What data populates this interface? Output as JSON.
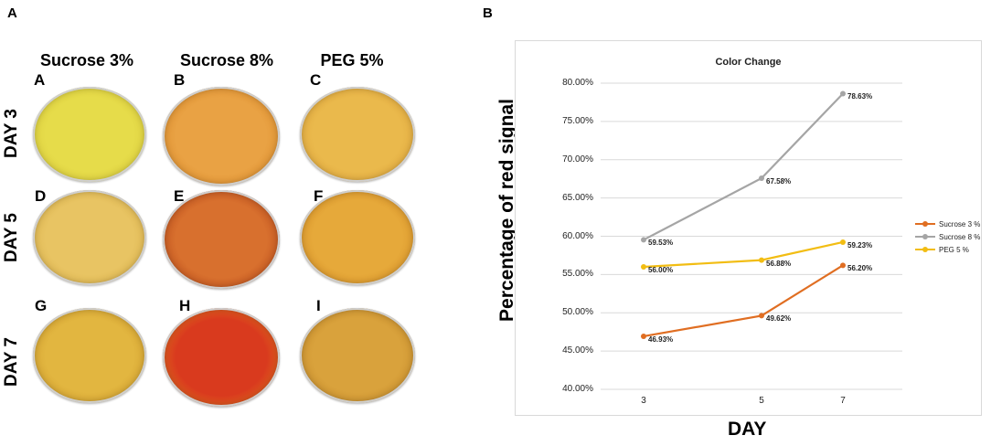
{
  "panel_a": {
    "letter": "A",
    "columns": [
      "Sucrose 3%",
      "Sucrose 8%",
      "PEG 5%"
    ],
    "rows": [
      "DAY 3",
      "DAY 5",
      "DAY 7"
    ],
    "dishes": [
      {
        "label": "A",
        "color": "#e6dc4a",
        "edge": "#d8c93a"
      },
      {
        "label": "B",
        "color": "#e9a244",
        "edge": "#d98a2a"
      },
      {
        "label": "C",
        "color": "#eab94c",
        "edge": "#dca33a"
      },
      {
        "label": "D",
        "color": "#e8c463",
        "edge": "#d9b04a"
      },
      {
        "label": "E",
        "color": "#d8702e",
        "edge": "#b84a1a"
      },
      {
        "label": "F",
        "color": "#e6a93a",
        "edge": "#d48e26"
      },
      {
        "label": "G",
        "color": "#e2b640",
        "edge": "#cf9c2c"
      },
      {
        "label": "H",
        "color": "#d93a1e",
        "edge": "#e0761e"
      },
      {
        "label": "I",
        "color": "#d9a23c",
        "edge": "#c48a2a"
      }
    ]
  },
  "panel_b": {
    "letter": "B"
  },
  "chart_data": {
    "type": "line",
    "title": "Color Change",
    "xlabel": "DAY",
    "ylabel": "Percentage of red signal",
    "categories": [
      "3",
      "5",
      "7"
    ],
    "ylim": [
      40,
      80
    ],
    "yticks": [
      "40.00%",
      "45.00%",
      "50.00%",
      "55.00%",
      "60.00%",
      "65.00%",
      "70.00%",
      "75.00%",
      "80.00%"
    ],
    "legend_position": "right",
    "series": [
      {
        "name": "Sucrose 3 %",
        "color": "#e06e22",
        "values": [
          46.93,
          49.62,
          56.2
        ],
        "labels": [
          "46.93%",
          "49.62%",
          "56.20%"
        ]
      },
      {
        "name": "Sucrose 8 %",
        "color": "#a5a5a5",
        "values": [
          59.53,
          67.58,
          78.63
        ],
        "labels": [
          "59.53%",
          "67.58%",
          "78.63%"
        ]
      },
      {
        "name": "PEG 5 %",
        "color": "#f2bd13",
        "values": [
          56.0,
          56.88,
          59.23
        ],
        "labels": [
          "56.00%",
          "56.88%",
          "59.23%"
        ]
      }
    ]
  }
}
